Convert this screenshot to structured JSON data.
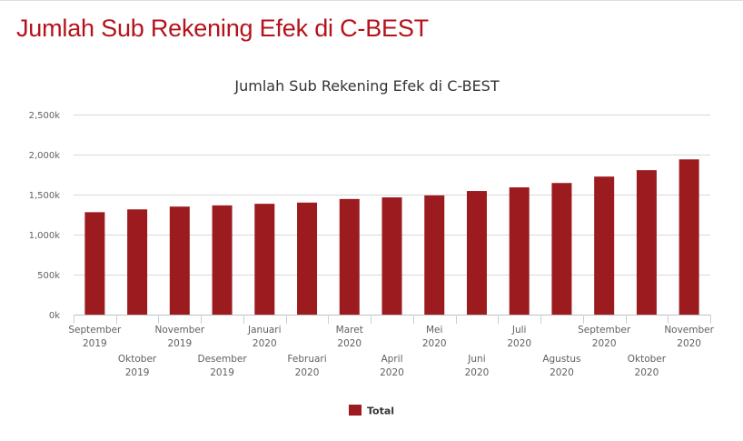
{
  "page": {
    "heading": "Jumlah Sub Rekening Efek di C-BEST"
  },
  "colors": {
    "heading": "#b5121b",
    "bar": "#9b1b1f",
    "grid": "#d8d8d8"
  },
  "chart_data": {
    "type": "bar",
    "title": "Jumlah Sub Rekening Efek di C-BEST",
    "xlabel": "",
    "ylabel": "",
    "ylim": [
      0,
      2500000
    ],
    "yticks": [
      0,
      500000,
      1000000,
      1500000,
      2000000,
      2500000
    ],
    "ytick_labels": [
      "0k",
      "500k",
      "1,000k",
      "1,500k",
      "2,000k",
      "2,500k"
    ],
    "grid": true,
    "legend_position": "bottom-center",
    "categories": [
      "September 2019",
      "Oktober 2019",
      "November 2019",
      "Desember 2019",
      "Januari 2020",
      "Februari 2020",
      "Maret 2020",
      "April 2020",
      "Mei 2020",
      "Juni 2020",
      "Juli 2020",
      "Agustus 2020",
      "September 2020",
      "Oktober 2020",
      "November 2020"
    ],
    "category_lines": [
      [
        "September",
        "2019"
      ],
      [
        "Oktober",
        "2019"
      ],
      [
        "November",
        "2019"
      ],
      [
        "Desember",
        "2019"
      ],
      [
        "Januari",
        "2020"
      ],
      [
        "Februari",
        "2020"
      ],
      [
        "Maret",
        "2020"
      ],
      [
        "April",
        "2020"
      ],
      [
        "Mei",
        "2020"
      ],
      [
        "Juni",
        "2020"
      ],
      [
        "Juli",
        "2020"
      ],
      [
        "Agustus",
        "2020"
      ],
      [
        "September",
        "2020"
      ],
      [
        "Oktober",
        "2020"
      ],
      [
        "November",
        "2020"
      ]
    ],
    "series": [
      {
        "name": "Total",
        "color": "#9b1b1f",
        "values": [
          1280000,
          1315000,
          1350000,
          1365000,
          1385000,
          1400000,
          1445000,
          1465000,
          1490000,
          1545000,
          1590000,
          1645000,
          1725000,
          1805000,
          1940000
        ]
      }
    ]
  }
}
